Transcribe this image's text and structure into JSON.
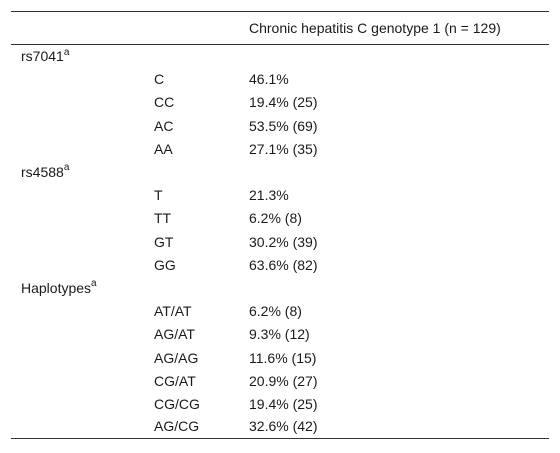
{
  "header": {
    "col1": "",
    "col2": "",
    "col3": "Chronic hepatitis C genotype 1 (n = 129)"
  },
  "groups": [
    {
      "label": "rs7041",
      "sup": "a",
      "rows": [
        {
          "allele": "C",
          "value": "46.1%"
        },
        {
          "allele": "CC",
          "value": "19.4% (25)"
        },
        {
          "allele": "AC",
          "value": "53.5% (69)"
        },
        {
          "allele": "AA",
          "value": "27.1% (35)"
        }
      ]
    },
    {
      "label": "rs4588",
      "sup": "a",
      "rows": [
        {
          "allele": "T",
          "value": "21.3%"
        },
        {
          "allele": "TT",
          "value": "6.2% (8)"
        },
        {
          "allele": "GT",
          "value": "30.2% (39)"
        },
        {
          "allele": "GG",
          "value": "63.6% (82)"
        }
      ]
    },
    {
      "label": "Haplotypes",
      "sup": "a",
      "rows": [
        {
          "allele": "AT/AT",
          "value": "6.2% (8)"
        },
        {
          "allele": "AG/AT",
          "value": "9.3% (12)"
        },
        {
          "allele": "AG/AG",
          "value": "11.6% (15)"
        },
        {
          "allele": "CG/AT",
          "value": "20.9% (27)"
        },
        {
          "allele": "CG/CG",
          "value": "19.4% (25)"
        },
        {
          "allele": "AG/CG",
          "value": "32.6% (42)"
        }
      ]
    }
  ]
}
